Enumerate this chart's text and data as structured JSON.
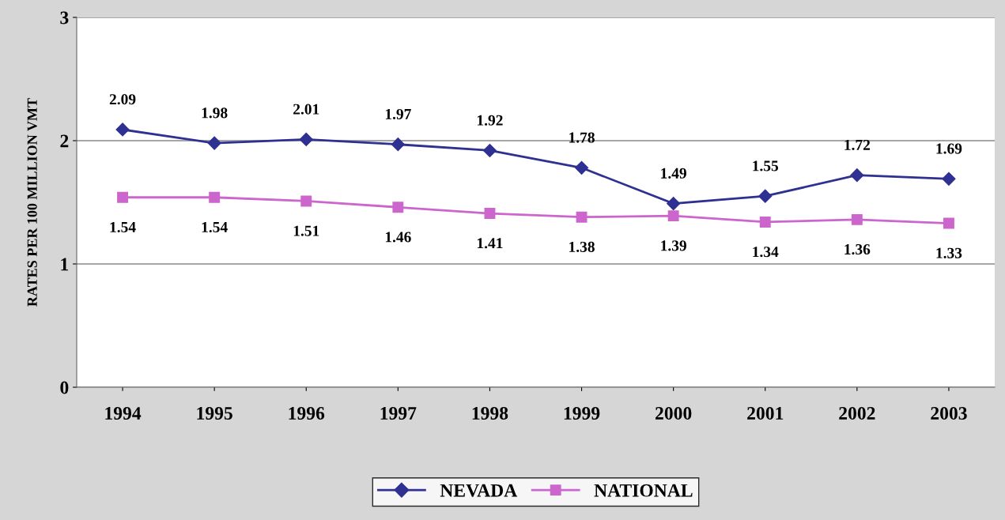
{
  "chart_data": {
    "type": "line",
    "ylabel": "RATES PER 100 MILLION VMT",
    "categories": [
      "1994",
      "1995",
      "1996",
      "1997",
      "1998",
      "1999",
      "2000",
      "2001",
      "2002",
      "2003"
    ],
    "series": [
      {
        "name": "NEVADA",
        "color": "#2e3192",
        "marker": "diamond",
        "values": [
          2.09,
          1.98,
          2.01,
          1.97,
          1.92,
          1.78,
          1.49,
          1.55,
          1.72,
          1.69
        ]
      },
      {
        "name": "NATIONAL",
        "color": "#cc66cc",
        "marker": "square",
        "values": [
          1.54,
          1.54,
          1.51,
          1.46,
          1.41,
          1.38,
          1.39,
          1.34,
          1.36,
          1.33
        ]
      }
    ],
    "ylim": [
      0,
      3
    ],
    "yticks": [
      0,
      1,
      2,
      3
    ],
    "grid": "y",
    "legend": "bottom",
    "data_labels": true,
    "line_style": "solid"
  }
}
